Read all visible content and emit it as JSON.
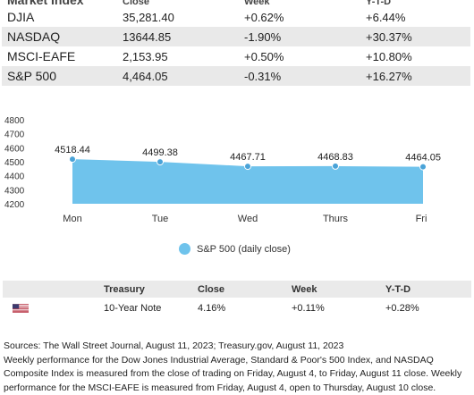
{
  "index_table": {
    "header": [
      "Market Index",
      "Close",
      "Week",
      "Y-T-D"
    ],
    "rows": [
      {
        "name": "DJIA",
        "close": "35,281.40",
        "week": "+0.62%",
        "ytd": "+6.44%"
      },
      {
        "name": "NASDAQ",
        "close": "13644.85",
        "week": "-1.90%",
        "ytd": "+30.37%"
      },
      {
        "name": "MSCI-EAFE",
        "close": "2,153.95",
        "week": "+0.50%",
        "ytd": "+10.80%"
      },
      {
        "name": "S&P 500",
        "close": "4,464.05",
        "week": "-0.31%",
        "ytd": "+16.27%"
      }
    ]
  },
  "chart_data": {
    "type": "area",
    "categories": [
      "Mon",
      "Tue",
      "Wed",
      "Thurs",
      "Fri"
    ],
    "series": [
      {
        "name": "S&P 500 (daily close)",
        "values": [
          4518.44,
          4499.38,
          4467.71,
          4468.83,
          4464.05
        ]
      }
    ],
    "data_labels": [
      "4518.44",
      "4499.38",
      "4467.71",
      "4468.83",
      "4464.05"
    ],
    "y_ticks": [
      4800,
      4700,
      4600,
      4500,
      4400,
      4300,
      4200
    ],
    "ylim": [
      4200,
      4800
    ],
    "color": "#6fc3ec",
    "grid": false,
    "legend": "bottom"
  },
  "legend": {
    "label": "S&P 500 (daily close)"
  },
  "treasury_table": {
    "header": [
      "",
      "Treasury",
      "Close",
      "Week",
      "Y-T-D"
    ],
    "row": {
      "flag": "us-flag-icon",
      "name": "10-Year Note",
      "close": "4.16%",
      "week": "+0.11%",
      "ytd": "+0.28%"
    }
  },
  "sources": {
    "line1": "Sources: The Wall Street Journal, August 11, 2023; Treasury.gov, August 11, 2023",
    "line2": "Weekly performance for the Dow Jones Industrial Average, Standard & Poor's 500 Index, and NASDAQ Composite Index is measured from the close of trading on Friday, August 4, to Friday, August 11 close. Weekly performance for the MSCI-EAFE is measured from Friday, August 4, open to Thursday, August 10 close."
  }
}
